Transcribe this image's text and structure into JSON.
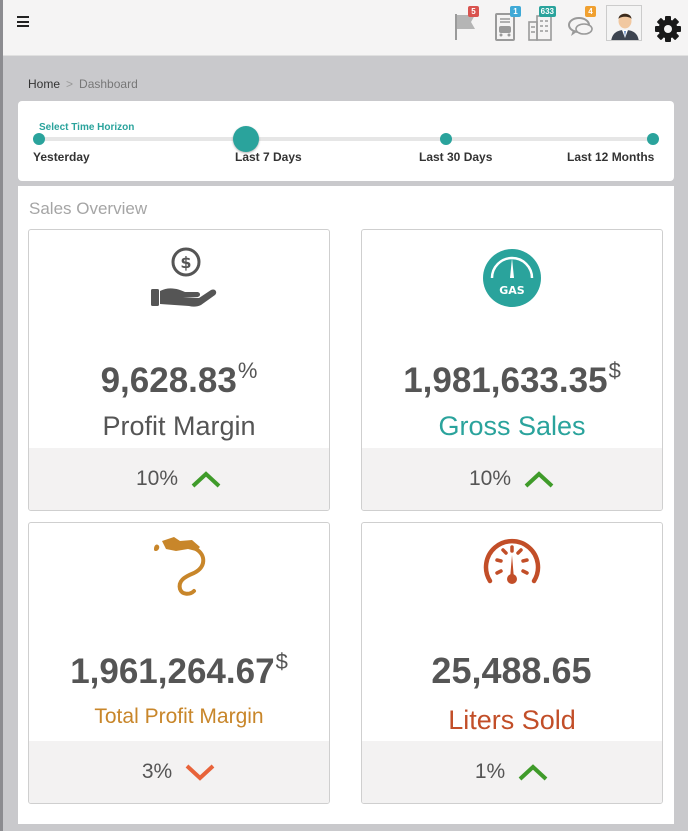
{
  "header": {
    "notifications": [
      {
        "name": "flag-icon",
        "count": "5",
        "color": "#d9534f"
      },
      {
        "name": "car-wash-icon",
        "count": "1",
        "color": "#3fa9d6"
      },
      {
        "name": "building-icon",
        "count": "633",
        "color": "#2aa39c"
      },
      {
        "name": "chat-icon",
        "count": "4",
        "color": "#f0a030"
      }
    ],
    "avatar": "user-avatar",
    "settings_icon": "gear-icon"
  },
  "breadcrumb": {
    "home": "Home",
    "separator": ">",
    "current": "Dashboard"
  },
  "time_horizon": {
    "title": "Select Time Horizon",
    "options": [
      "Yesterday",
      "Last 7 Days",
      "Last 30 Days",
      "Last 12 Months"
    ],
    "selected": "Last 7 Days"
  },
  "overview": {
    "title": "Sales Overview",
    "cards": [
      {
        "icon": "hand-coin-icon",
        "value": "9,628.83",
        "unit": "%",
        "label": "Profit Margin",
        "label_color": "#555555",
        "change": "10%",
        "trend": "up"
      },
      {
        "icon": "gas-gauge-icon",
        "value": "1,981,633.35",
        "unit": "$",
        "label": "Gross Sales",
        "label_color": "#2aa39c",
        "change": "10%",
        "trend": "up"
      },
      {
        "icon": "fuel-nozzle-icon",
        "value": "1,961,264.67",
        "unit": "$",
        "label": "Total Profit Margin",
        "label_color": "#c8862a",
        "change": "3%",
        "trend": "down"
      },
      {
        "icon": "speedometer-icon",
        "value": "25,488.65",
        "unit": "",
        "label": "Liters Sold",
        "label_color": "#c24e28",
        "change": "1%",
        "trend": "up"
      }
    ]
  },
  "colors": {
    "accent": "#2aa39c",
    "up": "#3f9b2a",
    "down": "#e8633a"
  }
}
